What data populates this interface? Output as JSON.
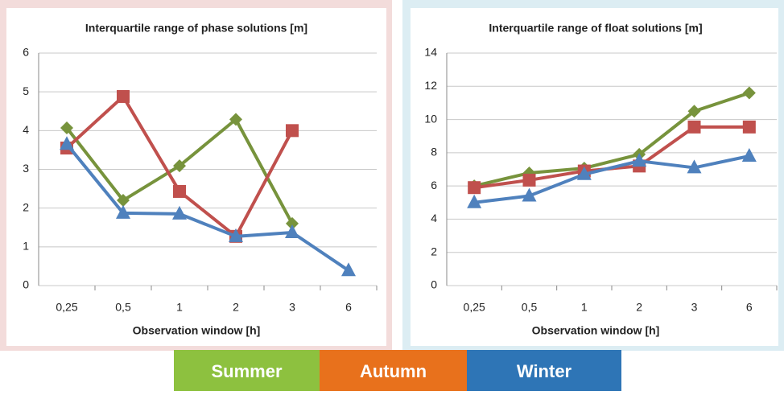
{
  "chart_data": [
    {
      "type": "line",
      "title": "Interquartile range of phase solutions [m]",
      "xlabel": "Observation window [h]",
      "categories": [
        "0,25",
        "0,5",
        "1",
        "2",
        "3",
        "6"
      ],
      "ylim": [
        0,
        6
      ],
      "yticks": [
        0,
        1,
        2,
        3,
        4,
        5,
        6
      ],
      "grid": true,
      "series": [
        {
          "name": "Summer",
          "color": "#77933c",
          "legend_color": "#8dc13f",
          "marker": "diamond",
          "values": [
            4.07,
            2.2,
            3.09,
            4.29,
            1.6,
            null
          ]
        },
        {
          "name": "Autumn",
          "color": "#c0504d",
          "legend_color": "#e8711c",
          "marker": "square",
          "values": [
            3.55,
            4.88,
            2.43,
            1.27,
            4.0,
            null
          ]
        },
        {
          "name": "Winter",
          "color": "#4f81bd",
          "legend_color": "#2e75b6",
          "marker": "triangle",
          "values": [
            3.65,
            1.87,
            1.85,
            1.27,
            1.37,
            0.39
          ]
        }
      ]
    },
    {
      "type": "line",
      "title": "Interquartile range of float solutions [m]",
      "xlabel": "Observation window [h]",
      "categories": [
        "0,25",
        "0,5",
        "1",
        "2",
        "3",
        "6"
      ],
      "ylim": [
        0,
        14
      ],
      "yticks": [
        0,
        2,
        4,
        6,
        8,
        10,
        12,
        14
      ],
      "grid": true,
      "series": [
        {
          "name": "Summer",
          "color": "#77933c",
          "legend_color": "#8dc13f",
          "marker": "diamond",
          "values": [
            6.0,
            6.78,
            7.07,
            7.9,
            10.5,
            11.6
          ]
        },
        {
          "name": "Autumn",
          "color": "#c0504d",
          "legend_color": "#e8711c",
          "marker": "square",
          "values": [
            5.9,
            6.35,
            6.9,
            7.2,
            9.55,
            9.55
          ]
        },
        {
          "name": "Winter",
          "color": "#4f81bd",
          "legend_color": "#2e75b6",
          "marker": "triangle",
          "values": [
            5.0,
            5.4,
            6.7,
            7.5,
            7.1,
            7.8
          ]
        }
      ]
    }
  ]
}
